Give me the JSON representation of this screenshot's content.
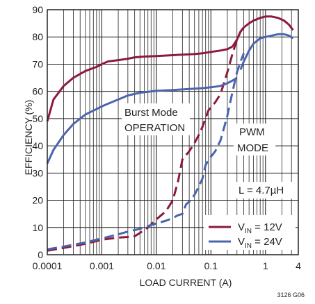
{
  "chart_data": {
    "type": "line",
    "title": "",
    "xlabel": "LOAD CURRENT (A)",
    "ylabel": "EFFICIENCY (%)",
    "x_scale": "log",
    "xlim": [
      0.0001,
      4
    ],
    "ylim": [
      0,
      90
    ],
    "x_ticks": [
      0.0001,
      0.001,
      0.01,
      0.1,
      1,
      4
    ],
    "x_tick_labels": [
      "0.0001",
      "0.001",
      "0.01",
      "0.1",
      "1",
      "4"
    ],
    "y_ticks": [
      0,
      10,
      20,
      30,
      40,
      50,
      60,
      70,
      80,
      90
    ],
    "y_tick_labels": [
      "0",
      "10",
      "20",
      "30",
      "40",
      "50",
      "60",
      "70",
      "80",
      "90"
    ],
    "grid": true,
    "legend_position": "bottom-right",
    "colors": {
      "12v": "#8b1a3c",
      "24v": "#4a64ad",
      "grid": "#222222"
    },
    "series": [
      {
        "name": "V_IN = 12V",
        "segments": [
          {
            "style": "solid",
            "x": [
              0.0001,
              0.00013,
              0.0002,
              0.0003,
              0.0005,
              0.0008,
              0.001,
              0.0013,
              0.002,
              0.003,
              0.004,
              0.006,
              0.01,
              0.02,
              0.03,
              0.05,
              0.07,
              0.1,
              0.15,
              0.2,
              0.25
            ],
            "y": [
              49,
              57,
              62,
              65,
              67.5,
              69,
              70,
              71,
              71.5,
              72,
              72.5,
              72.8,
              73,
              73.3,
              73.5,
              73.7,
              74,
              74.5,
              75,
              75.5,
              76.5
            ]
          },
          {
            "style": "solid",
            "x": [
              0.25,
              0.3,
              0.35,
              0.4,
              0.5,
              0.6,
              0.8,
              1,
              1.3,
              1.7,
              2.2,
              2.7,
              3.2
            ],
            "y": [
              76.5,
              79,
              82,
              83.5,
              85,
              86,
              87,
              87.5,
              87.5,
              87,
              86,
              84.5,
              82.5
            ]
          },
          {
            "style": "dashed",
            "x": [
              0.0001,
              0.0002,
              0.0005,
              0.001,
              0.002,
              0.003,
              0.004,
              0.005,
              0.007,
              0.01,
              0.015,
              0.02,
              0.025,
              0.03,
              0.04,
              0.05,
              0.06,
              0.07,
              0.09,
              0.1,
              0.12,
              0.15,
              0.2,
              0.25,
              0.3,
              0.35,
              0.4
            ],
            "y": [
              1.5,
              2.5,
              4,
              5.5,
              6.3,
              6.5,
              6.8,
              8,
              10,
              13,
              16,
              20,
              27,
              35,
              38,
              41,
              44,
              47,
              53,
              54,
              56,
              59,
              67,
              74,
              79,
              82,
              83.5
            ]
          }
        ]
      },
      {
        "name": "V_IN = 24V",
        "segments": [
          {
            "style": "solid",
            "x": [
              0.0001,
              0.00013,
              0.0002,
              0.0003,
              0.0005,
              0.0008,
              0.001,
              0.0015,
              0.002,
              0.003,
              0.005,
              0.008,
              0.01,
              0.02,
              0.03,
              0.05,
              0.07,
              0.1,
              0.15,
              0.2,
              0.25,
              0.3
            ],
            "y": [
              33.5,
              38.5,
              44,
              48,
              51.5,
              53.5,
              54.5,
              56,
              57,
              58.5,
              59.5,
              60,
              60.2,
              60.5,
              60.7,
              61,
              61.2,
              61.5,
              62,
              63,
              64,
              65
            ]
          },
          {
            "style": "solid",
            "x": [
              0.35,
              0.4,
              0.5,
              0.6,
              0.8,
              1,
              1.3,
              1.7,
              2.2,
              2.7,
              3.2
            ],
            "y": [
              68,
              71,
              75,
              77.5,
              79.5,
              80,
              80.5,
              81,
              81,
              80.5,
              79.5
            ]
          },
          {
            "style": "dashed",
            "x": [
              0.0001,
              0.0002,
              0.0005,
              0.001,
              0.002,
              0.003,
              0.005,
              0.007,
              0.01,
              0.015,
              0.02,
              0.025,
              0.03,
              0.035,
              0.04,
              0.05,
              0.06,
              0.07,
              0.08,
              0.1,
              0.12,
              0.15,
              0.2,
              0.25,
              0.3,
              0.35,
              0.4
            ],
            "y": [
              2,
              3,
              4.5,
              6,
              7.5,
              8.5,
              9.5,
              10.5,
              11.5,
              12.5,
              13.5,
              14.5,
              15,
              18.5,
              19.5,
              22,
              25,
              28,
              33,
              36,
              38,
              42,
              51,
              60,
              67,
              71,
              74
            ]
          }
        ]
      }
    ],
    "annotations": {
      "burst_line1": "Burst Mode",
      "burst_line2": "OPERATION",
      "pwm_line1": "PWM",
      "pwm_line2": "MODE",
      "inductor": "L = 4.7µH"
    },
    "legend": {
      "entries": [
        {
          "prefix": "V",
          "sub": "IN",
          "suffix": " = 12V",
          "color": "#8b1a3c"
        },
        {
          "prefix": "V",
          "sub": "IN",
          "suffix": " = 24V",
          "color": "#4a64ad"
        }
      ]
    },
    "figure_id": "3126 G06"
  }
}
